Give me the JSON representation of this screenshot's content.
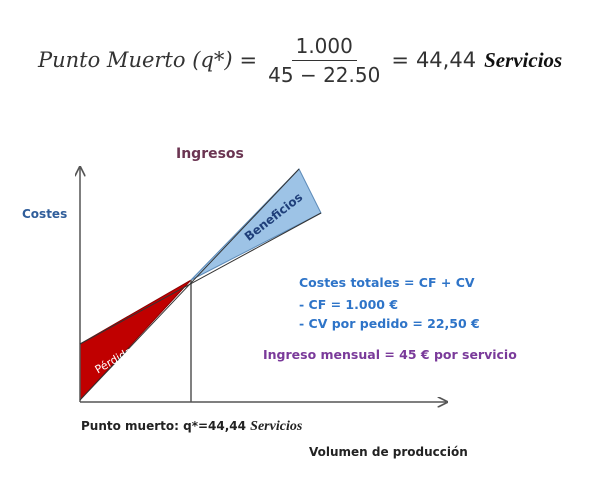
{
  "formula": {
    "lhs": "Punto Muerto (q*)",
    "eq1": "=",
    "numerator": "1.000",
    "denominator": "45 − 22.50",
    "eq2": "=",
    "result": "44,44",
    "unit": "Servicios"
  },
  "chart_data": {
    "type": "area",
    "title": "",
    "xlabel": "Volumen de producción",
    "ylabel": "Costes",
    "top_label": "Ingresos",
    "regions": [
      {
        "name": "Pérdidas",
        "color": "#c00000"
      },
      {
        "name": "Beneficios",
        "color": "#9dc3e6"
      }
    ],
    "break_even_label": "Punto muerto: q*=44,44",
    "break_even_unit": "Servicios",
    "annotations": [
      "Costes totales = CF + CV",
      "- CF = 1.000 €",
      "- CV por pedido = 22,50 €",
      "Ingreso mensual = 45 € por servicio"
    ]
  }
}
